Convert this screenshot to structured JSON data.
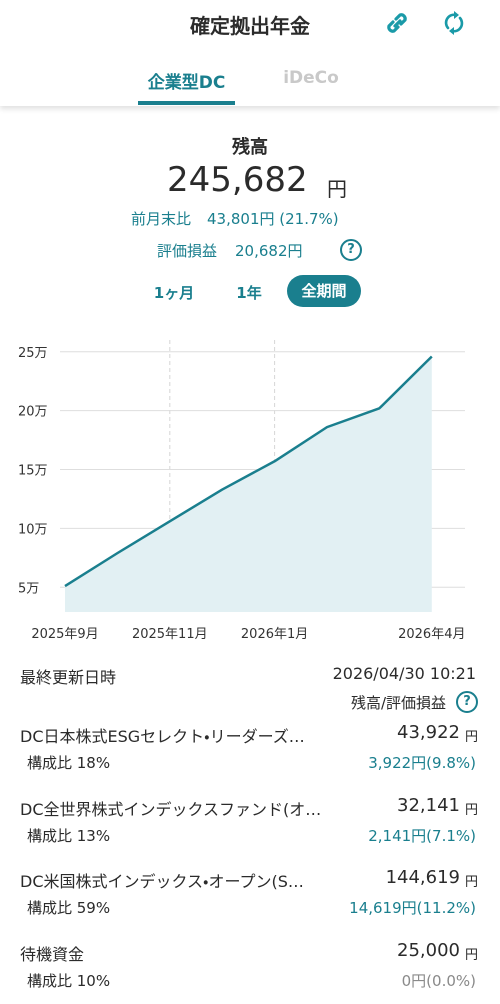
{
  "header": {
    "title": "確定拠出年金"
  },
  "tabs": [
    "企業型DC",
    "iDeCo"
  ],
  "currency_unit": "円",
  "summary": {
    "label": "残高",
    "amount": "245,682",
    "change_label": "前月末比",
    "change": "43,801円 (21.7%)",
    "gain_label": "評価損益",
    "gain": "20,682円"
  },
  "periods": [
    "1ヶ月",
    "1年",
    "全期間"
  ],
  "chart_data": {
    "type": "area",
    "categories": [
      "2025年9月",
      null,
      "2025年11月",
      null,
      "2026年1月",
      null,
      null,
      "2026年4月"
    ],
    "values": [
      5.1,
      7.9,
      10.6,
      13.3,
      15.7,
      18.6,
      20.2,
      24.6
    ],
    "color": "#1a7f8e",
    "fill_color": "#e2f0f3",
    "ylim": [
      2.9,
      26
    ],
    "yticks": [
      {
        "value": 5,
        "label": "5万"
      },
      {
        "value": 10,
        "label": "10万"
      },
      {
        "value": 15,
        "label": "15万"
      },
      {
        "value": 20,
        "label": "20万"
      },
      {
        "value": 25,
        "label": "25万"
      }
    ],
    "grid": true
  },
  "info": {
    "updated_label": "最終更新日時",
    "updated": "2026/04/30 10:21",
    "column_label": "残高/評価損益"
  },
  "funds": [
    {
      "name": "DC日本株式ESGセレクト・リーダーズ…",
      "amount": "43,922",
      "ratio": "構成比 18%",
      "gain": "3,922円(9.8%)"
    },
    {
      "name": "DC全世界株式インデックスファンド(オ…",
      "amount": "32,141",
      "ratio": "構成比 13%",
      "gain": "2,141円(7.1%)"
    },
    {
      "name": "DC米国株式インデックス・オープン(S…",
      "amount": "144,619",
      "ratio": "構成比 59%",
      "gain": "14,619円(11.2%)"
    },
    {
      "name": "待機資金",
      "amount": "25,000",
      "ratio": "構成比 10%",
      "gain": "0円(0.0%)"
    }
  ]
}
